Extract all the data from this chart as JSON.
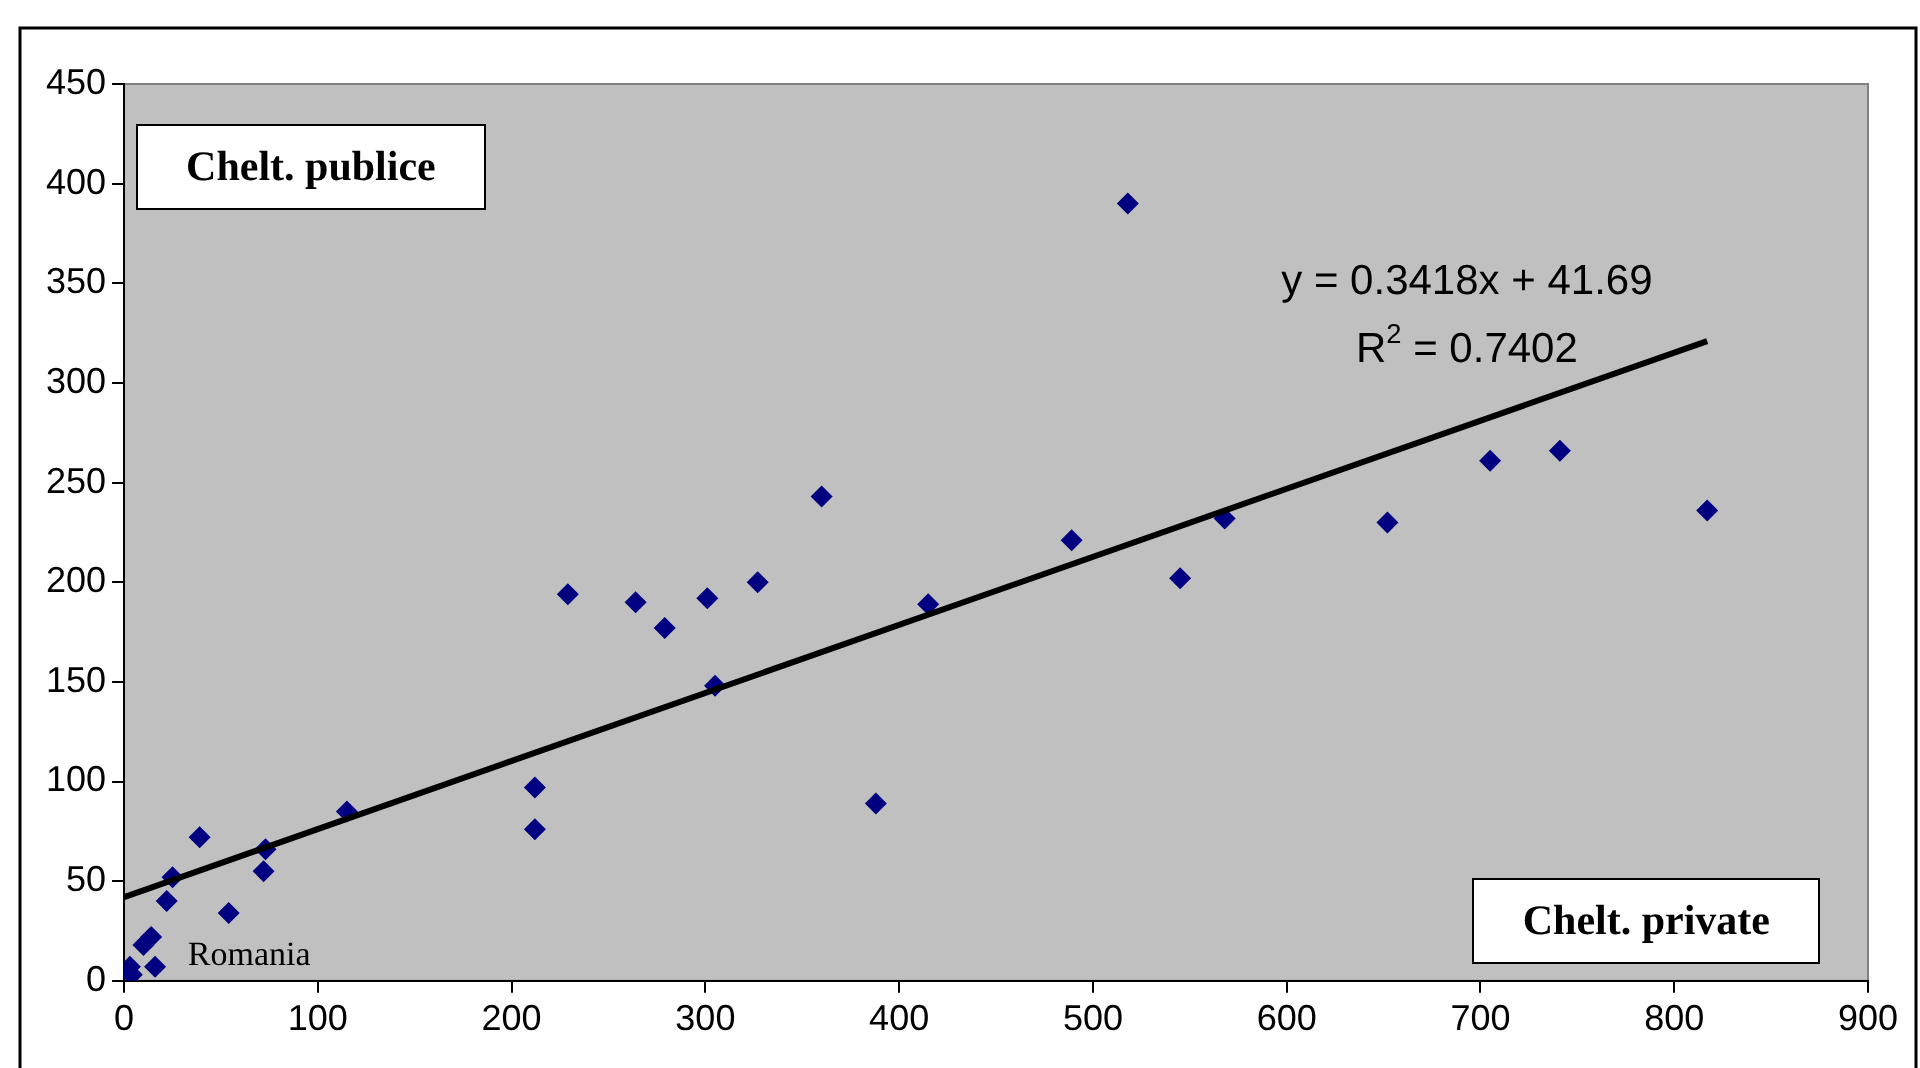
{
  "chart_data": {
    "type": "scatter",
    "xlabel": "Chelt. private",
    "ylabel": "Chelt. publice",
    "xlim": [
      0,
      900
    ],
    "ylim": [
      0,
      450
    ],
    "xticks": [
      0,
      100,
      200,
      300,
      400,
      500,
      600,
      700,
      800,
      900
    ],
    "yticks": [
      0,
      50,
      100,
      150,
      200,
      250,
      300,
      350,
      400,
      450
    ],
    "grid": false,
    "legend": false,
    "marker": "diamond",
    "annotations": [
      "y = 0.3418x + 41.69",
      "R$^{2}$ = 0.7402",
      {
        "text": "Romania",
        "x": 4,
        "y": 3
      }
    ],
    "series": [
      {
        "color": "#000080",
        "x": [
          3,
          4,
          10,
          14,
          16,
          22,
          25,
          39,
          54,
          72,
          73,
          115,
          212,
          212,
          229,
          264,
          279,
          301,
          327,
          360,
          305,
          388,
          415,
          518,
          489,
          545,
          568,
          652,
          705,
          741,
          817
        ],
        "values": [
          7,
          3,
          18,
          22,
          7,
          40,
          52,
          72,
          34,
          55,
          66,
          85,
          97,
          76,
          194,
          190,
          177,
          192,
          200,
          243,
          148,
          89,
          189,
          390,
          221,
          202,
          232,
          230,
          261,
          266,
          236
        ]
      },
      {
        "type": "line",
        "color": "#000000",
        "marker": "none",
        "line_style": "solid",
        "x": [
          0,
          817
        ],
        "values": [
          42,
          321
        ]
      }
    ]
  }
}
